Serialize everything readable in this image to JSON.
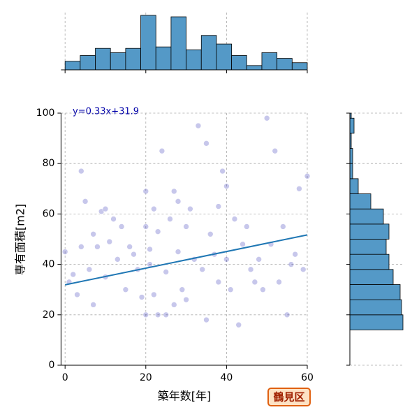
{
  "chart_data": {
    "type": "scatter",
    "annotation": "y=0.33x+31.9",
    "xlabel": "築年数[年]",
    "ylabel": "専有面積[m2]",
    "badge": "鶴見区",
    "color": "#2020b0",
    "line_color": "#1f77b4",
    "hist_color": "#5499c7",
    "grid": true,
    "xlim": [
      -1,
      60
    ],
    "ylim": [
      0,
      100
    ],
    "xticks": [
      0,
      20,
      40,
      60
    ],
    "yticks": [
      0,
      20,
      40,
      60,
      80,
      100
    ],
    "x": [
      0,
      1,
      2,
      3,
      4,
      4,
      5,
      6,
      7,
      7,
      8,
      9,
      10,
      10,
      11,
      12,
      13,
      14,
      15,
      16,
      17,
      18,
      19,
      20,
      20,
      20,
      21,
      21,
      22,
      22,
      23,
      23,
      24,
      25,
      25,
      26,
      27,
      27,
      28,
      28,
      29,
      30,
      30,
      31,
      32,
      33,
      34,
      35,
      35,
      36,
      37,
      38,
      38,
      39,
      40,
      40,
      41,
      42,
      43,
      44,
      45,
      46,
      47,
      48,
      49,
      50,
      51,
      52,
      53,
      54,
      55,
      56,
      57,
      58,
      59,
      60
    ],
    "y": [
      45,
      33,
      36,
      28,
      77,
      47,
      65,
      38,
      52,
      24,
      47,
      61,
      35,
      62,
      49,
      58,
      42,
      55,
      30,
      47,
      44,
      38,
      27,
      69,
      20,
      55,
      40,
      46,
      28,
      62,
      20,
      53,
      85,
      37,
      20,
      58,
      24,
      69,
      45,
      65,
      30,
      55,
      26,
      62,
      42,
      95,
      38,
      88,
      18,
      52,
      44,
      63,
      33,
      77,
      42,
      71,
      30,
      58,
      16,
      48,
      55,
      38,
      33,
      42,
      30,
      98,
      48,
      85,
      33,
      55,
      20,
      40,
      44,
      70,
      38,
      75
    ],
    "regression": {
      "slope": 0.33,
      "intercept": 31.9
    },
    "marginal_x": {
      "bins": [
        0,
        3.75,
        7.5,
        11.25,
        15,
        18.75,
        22.5,
        26.25,
        30,
        33.75,
        37.5,
        41.25,
        45,
        48.75,
        52.5,
        56.25,
        60
      ],
      "counts": [
        6,
        10,
        15,
        12,
        15,
        38,
        16,
        37,
        14,
        24,
        18,
        10,
        3,
        12,
        8,
        5
      ]
    },
    "marginal_y": {
      "bins": [
        14,
        20,
        26,
        32,
        38,
        44,
        50,
        56,
        62,
        68,
        74,
        80,
        86,
        92,
        98,
        100
      ],
      "counts": [
        38,
        37,
        36,
        31,
        28,
        26,
        28,
        24,
        15,
        6,
        2,
        2,
        1,
        3,
        1
      ]
    }
  }
}
